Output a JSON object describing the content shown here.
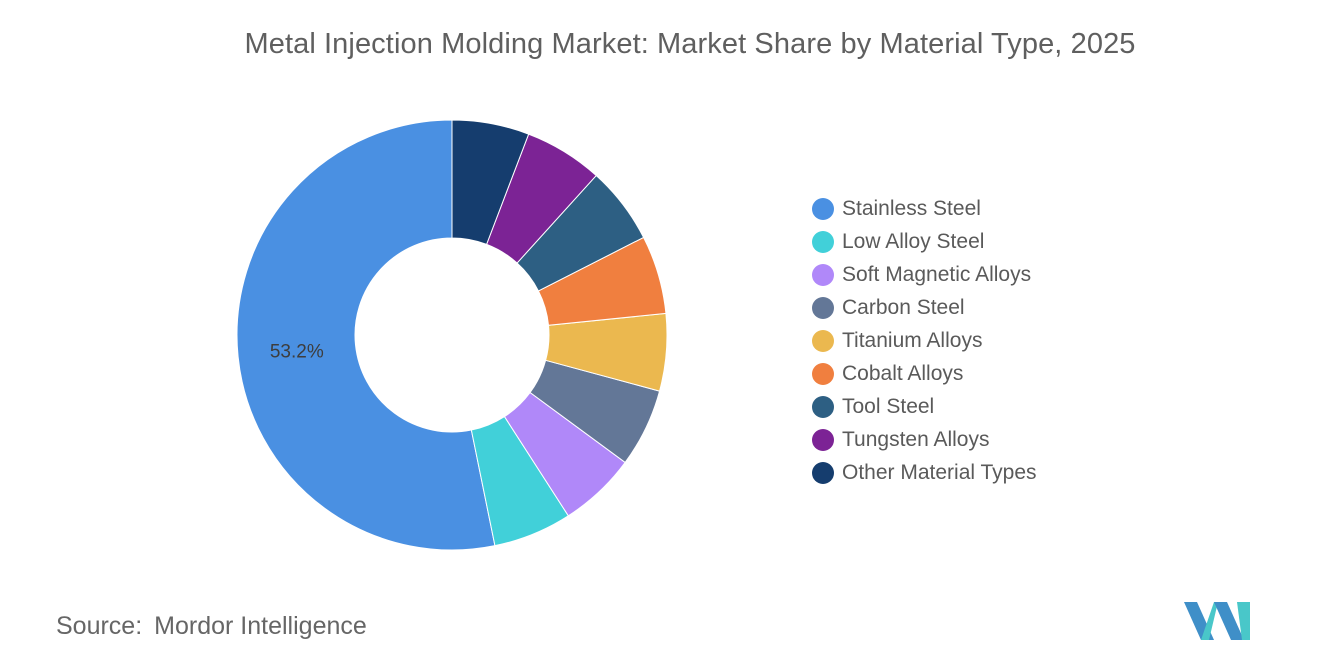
{
  "chart_data": {
    "type": "pie",
    "title": "Metal Injection Molding Market: Market Share by Material Type, 2025",
    "categories": [
      "Stainless Steel",
      "Low Alloy Steel",
      "Soft Magnetic Alloys",
      "Carbon Steel",
      "Titanium Alloys",
      "Cobalt Alloys",
      "Tool Steel",
      "Tungsten Alloys",
      "Other Material Types"
    ],
    "values": [
      53.2,
      5.9,
      5.8,
      5.9,
      5.8,
      5.9,
      5.8,
      5.9,
      5.8
    ],
    "colors": [
      "#4a90e2",
      "#41d0d9",
      "#b088f9",
      "#637797",
      "#ebb84f",
      "#f07f3f",
      "#2d5f83",
      "#7c2395",
      "#153d6e"
    ],
    "data_labels": [
      {
        "category": "Stainless Steel",
        "text": "53.2%"
      }
    ],
    "donut": true,
    "legend_position": "right"
  },
  "source": {
    "label": "Source:",
    "value": "Mordor Intelligence"
  },
  "logo": {
    "name": "mordor-intelligence-logo-icon",
    "colors": [
      "#3f8fc8",
      "#49c7c9"
    ]
  }
}
